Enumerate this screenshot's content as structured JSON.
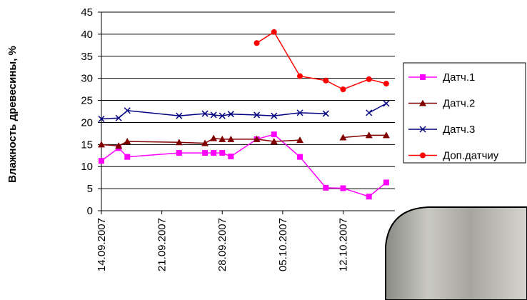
{
  "chart_data": {
    "type": "line",
    "y_label": "Влажность древесины, %",
    "x": [
      "2007-09-14",
      "2007-09-16",
      "2007-09-17",
      "2007-09-23",
      "2007-09-26",
      "2007-09-27",
      "2007-09-28",
      "2007-09-29",
      "2007-10-02",
      "2007-10-04",
      "2007-10-07",
      "2007-10-10",
      "2007-10-12",
      "2007-10-15",
      "2007-10-17"
    ],
    "xlim": [
      "2007-09-14",
      "2007-10-18"
    ],
    "xticks": [
      {
        "value": "2007-09-14",
        "label": "14.09.2007"
      },
      {
        "value": "2007-09-21",
        "label": "21.09.2007"
      },
      {
        "value": "2007-09-28",
        "label": "28.09.2007"
      },
      {
        "value": "2007-10-05",
        "label": "05.10.2007"
      },
      {
        "value": "2007-10-12",
        "label": "12.10.2007"
      }
    ],
    "ylim": [
      0,
      45
    ],
    "yticks": [
      0,
      5,
      10,
      15,
      20,
      25,
      30,
      35,
      40,
      45
    ],
    "grid": true,
    "series": [
      {
        "name": "Датч.1",
        "color": "#ff00ff",
        "marker": "square",
        "values": [
          11.3,
          14.2,
          12.2,
          13.1,
          13.1,
          13.1,
          13.1,
          12.3,
          16.2,
          17.3,
          12.2,
          5.2,
          5.1,
          3.2,
          6.4
        ]
      },
      {
        "name": "Датч.2",
        "color": "#800000",
        "marker": "triangle",
        "values": [
          15.0,
          14.7,
          15.7,
          15.5,
          15.3,
          16.4,
          16.2,
          16.2,
          16.2,
          15.7,
          16.0,
          null,
          16.6,
          17.1,
          17.1
        ]
      },
      {
        "name": "Датч.3",
        "color": "#000080",
        "marker": "x",
        "values": [
          20.8,
          21.0,
          22.7,
          21.5,
          22.0,
          21.7,
          21.5,
          21.9,
          21.7,
          21.5,
          22.2,
          22.0,
          null,
          22.2,
          24.3
        ]
      },
      {
        "name": "Доп.датчиу",
        "color": "#ff0000",
        "marker": "circle",
        "values": [
          null,
          null,
          null,
          null,
          null,
          null,
          null,
          null,
          38.0,
          40.5,
          30.5,
          29.5,
          27.5,
          29.8,
          28.8
        ]
      }
    ]
  }
}
